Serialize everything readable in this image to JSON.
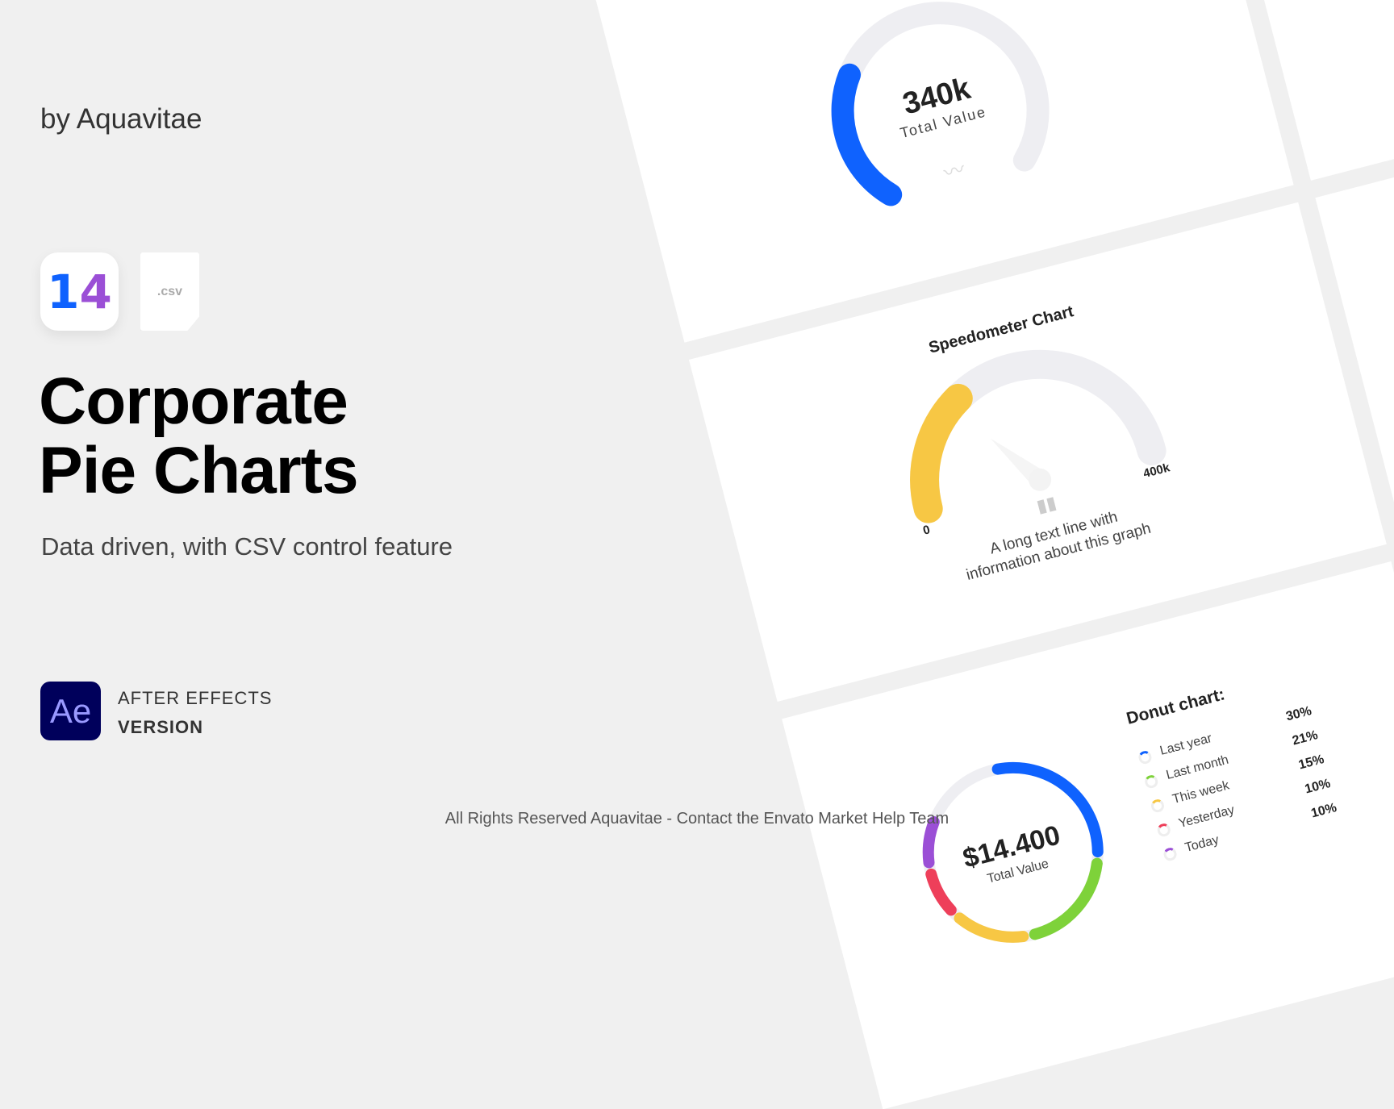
{
  "author": "by Aquavitae",
  "badges": {
    "count": "14",
    "csv": ".csv"
  },
  "title": {
    "line1": "Corporate",
    "line2": "Pie Charts"
  },
  "subtitle": "Data driven, with CSV control feature",
  "app": {
    "logo": "Ae",
    "line1": "AFTER EFFECTS",
    "line2": "VERSION"
  },
  "footer": "All Rights Reserved Aquavitae - Contact the Envato Market Help Team",
  "colors": {
    "blue": "#0f62fe",
    "yellow": "#f7c744",
    "green": "#7ed23a",
    "red": "#ee3f5a",
    "purple": "#9b4fd6",
    "track": "#eeeef2"
  },
  "gauge_total": {
    "value": "340k",
    "label": "Total Value",
    "fraction": 0.3,
    "icon": "trend-line-icon"
  },
  "speedometer": {
    "title": "Speedometer Chart",
    "min": "0",
    "max": "400k",
    "fraction": 0.33,
    "caption1": "A long text line  with",
    "caption2": "information about this graph",
    "icon": "bar-chart-icon"
  },
  "donut": {
    "value": "$14.400",
    "label": "Total Value",
    "title": "Donut chart:",
    "items": [
      {
        "label": "Last year",
        "pct": "30%",
        "value": 30,
        "color": "#0f62fe"
      },
      {
        "label": "Last month",
        "pct": "21%",
        "value": 21,
        "color": "#7ed23a"
      },
      {
        "label": "This week",
        "pct": "15%",
        "value": 15,
        "color": "#f7c744"
      },
      {
        "label": "Yesterday",
        "pct": "10%",
        "value": 10,
        "color": "#ee3f5a"
      },
      {
        "label": "Today",
        "pct": "10%",
        "value": 10,
        "color": "#9b4fd6"
      }
    ]
  }
}
